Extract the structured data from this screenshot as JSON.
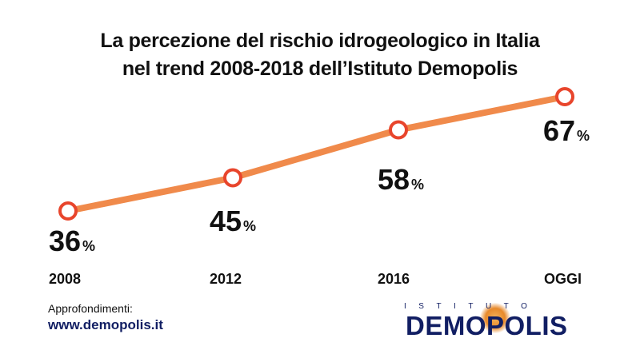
{
  "title": {
    "line1": "La percezione del rischio idrogeologico in Italia",
    "line2": "nel trend 2008-2018 dell’Istituto Demopolis"
  },
  "chart_data": {
    "type": "line",
    "categories": [
      "2008",
      "2012",
      "2016",
      "OGGI"
    ],
    "values": [
      36,
      45,
      58,
      67
    ],
    "value_suffix": "%",
    "line_color": "#f08a4b",
    "marker_stroke": "#e8452c"
  },
  "footer": {
    "label": "Approfondimenti:",
    "link": "www.demopolis.it"
  },
  "logo": {
    "top": "ISTITUTO",
    "main": "DEMOPOLIS"
  }
}
